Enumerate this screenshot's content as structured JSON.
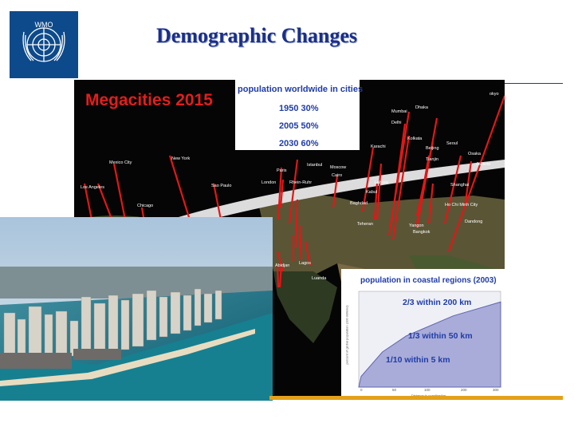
{
  "header": {
    "title": "Demographic Changes",
    "logo": "un-emblem-icon"
  },
  "map": {
    "title": "Megacities 2015",
    "urban_inset": {
      "heading": "population worldwide in cities",
      "rows": [
        "1950  30%",
        "2005  50%",
        "2030  60%"
      ]
    },
    "cities": {
      "tokyo": "okyo",
      "dhaka": "Dhaka",
      "mumbai": "Mumbai",
      "delhi": "Delhi",
      "kolkata": "Kolkata",
      "karachi": "Karachi",
      "beijing": "Beijing",
      "seoul": "Seoul",
      "tianjin": "Tianjin",
      "osaka": "Osaka",
      "jakarta": "Jakarta",
      "mexico_city": "Mexico City",
      "new_york": "New York",
      "los_angeles": "Los Angeles",
      "chicago": "Chicago",
      "sao_paulo": "Sao Paulo",
      "paris": "Paris",
      "london": "London",
      "istanbul": "Istanbul",
      "moscow": "Moscow",
      "cairo": "Cairo",
      "rhein_ruhr": "Rhein-Ruhr",
      "lahore": "Lahore",
      "kabul": "Kabul",
      "shanghai": "Shanghai",
      "baghdad": "Baghdad",
      "ho_chi_minh": "Ho Chi Minh City",
      "tehran": "Teheran",
      "dandong": "Dandong",
      "yangon": "Yangon",
      "bangkok": "Bangkok",
      "abidjan": "Abidjan",
      "lagos": "Lagos",
      "luanda": "Luanda"
    }
  },
  "coastal": {
    "title": "population in coastal regions (2003)",
    "labels": [
      "2/3 within 200 km",
      "1/3 within 50 km",
      "1/10 within 5 km"
    ],
    "xlabel": "Distance to coastline/km",
    "ylabel": "percent of global population (100 millions)",
    "xticks": [
      "0",
      "50",
      "100",
      "200",
      "300"
    ]
  },
  "chart_data": {
    "type": "area",
    "title": "population in coastal regions (2003)",
    "xlabel": "Distance to coastline/km",
    "ylabel": "percent of global population (100 millions)",
    "x": [
      0,
      5,
      50,
      100,
      200,
      300
    ],
    "values": [
      0,
      10,
      33,
      48,
      67,
      80
    ],
    "xlim": [
      0,
      300
    ],
    "ylim": [
      0,
      90
    ]
  },
  "colors": {
    "title": "#1a2f8a",
    "accent_red": "#e31d1d",
    "inset_text": "#1f3ca8",
    "bar": "#e3a11a"
  }
}
